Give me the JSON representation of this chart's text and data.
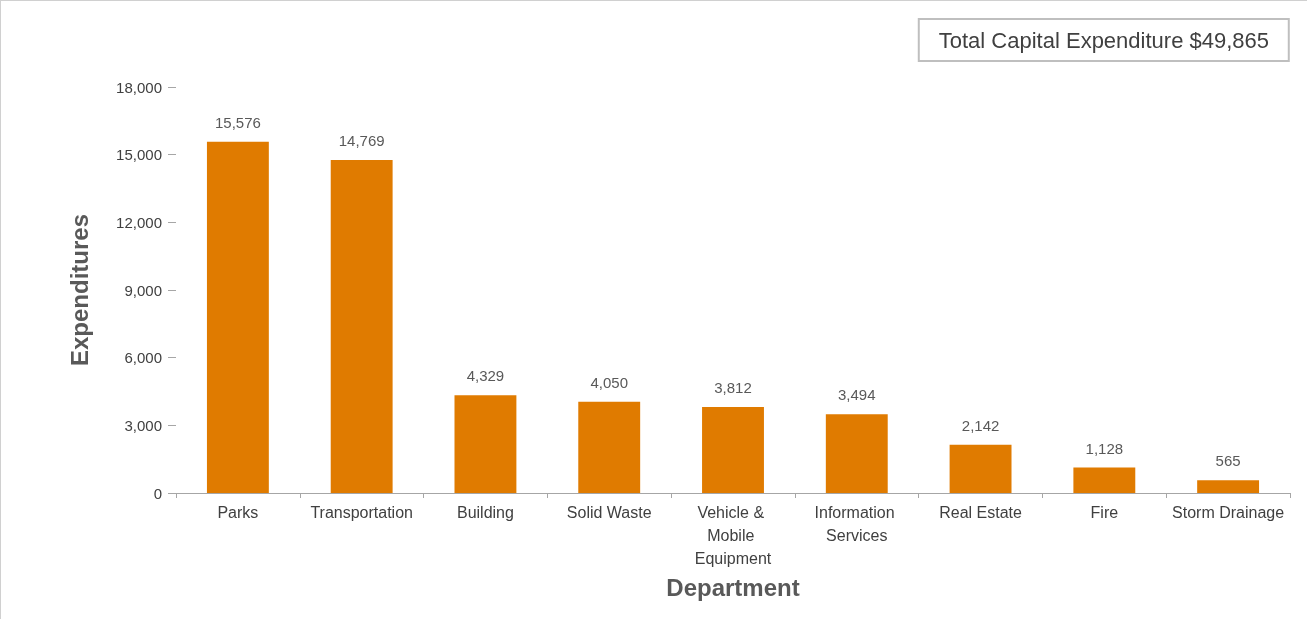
{
  "chart_data": {
    "type": "bar",
    "xlabel": "Department",
    "ylabel": "Expenditures",
    "annotations": [
      "Total Capital Expenditure $49,865"
    ],
    "categories": [
      "Parks",
      "Transportation",
      "Building",
      "Solid Waste",
      "Vehicle & Mobile Equipment",
      "Information Services",
      "Real Estate",
      "Fire",
      "Storm Drainage"
    ],
    "values": [
      15576,
      14769,
      4329,
      4050,
      3812,
      3494,
      2142,
      1128,
      565
    ],
    "value_labels": [
      "15,576",
      "14,769",
      "4,329",
      "4,050",
      "3,812",
      "3,494",
      "2,142",
      "1,128",
      "565"
    ],
    "color": "#e07b00",
    "ylim": [
      0,
      18000
    ],
    "yticks": [
      0,
      {
        "value": 3000,
        "label": "3,000"
      },
      {
        "value": 6000,
        "label": "6,000"
      },
      {
        "value": 9000,
        "label": "9,000"
      },
      {
        "value": 12000,
        "label": "12,000"
      },
      {
        "value": 15000,
        "label": "15,000"
      },
      {
        "value": 18000,
        "label": "18,000"
      }
    ],
    "grid": false
  }
}
